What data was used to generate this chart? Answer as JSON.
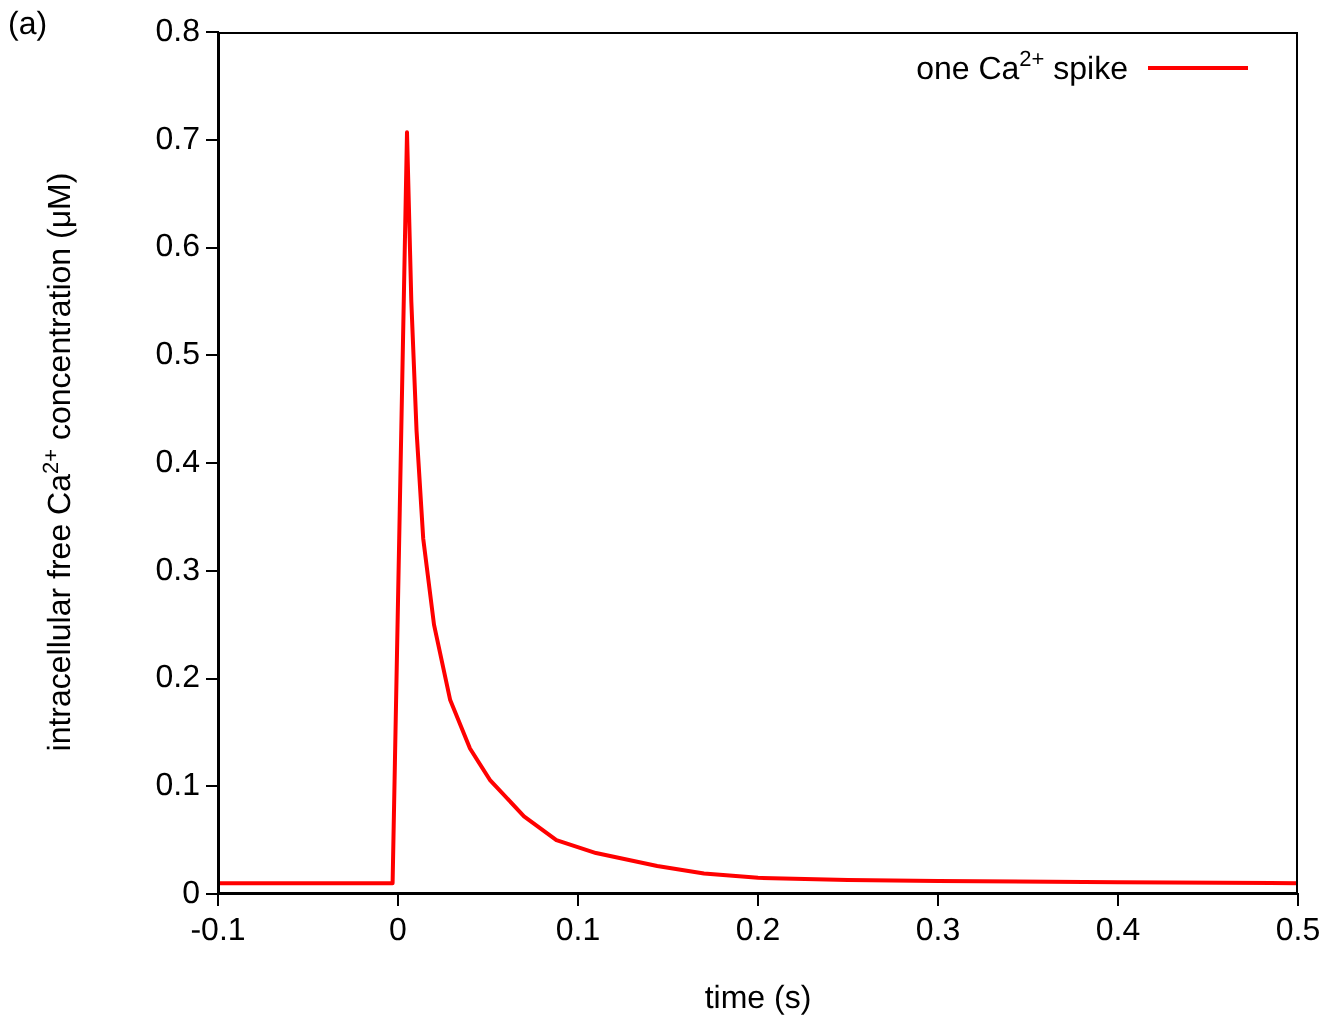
{
  "chart_data": {
    "type": "line",
    "xlabel": "time (s)",
    "ylabel": "intracellular free Ca$^{2+}$ concentration (μM)",
    "annotations": [
      "(a)"
    ],
    "x": [
      -0.1,
      -0.003,
      0.005,
      0.0074,
      0.0103,
      0.014,
      0.02,
      0.029,
      0.04,
      0.051,
      0.07,
      0.088,
      0.11,
      0.144,
      0.17,
      0.2,
      0.25,
      0.3,
      0.4,
      0.5
    ],
    "series": [
      {
        "name": "one Ca$^{2+}$ spike",
        "color": "#ff0000",
        "values": [
          0.01,
          0.01,
          0.707,
          0.55,
          0.43,
          0.33,
          0.25,
          0.18,
          0.135,
          0.106,
          0.072,
          0.05,
          0.038,
          0.026,
          0.019,
          0.015,
          0.013,
          0.012,
          0.011,
          0.01
        ]
      }
    ],
    "xlim": [
      -0.1,
      0.5
    ],
    "xticks": [
      -0.1,
      0,
      0.1,
      0.2,
      0.3,
      0.4,
      0.5
    ],
    "ylim": [
      0,
      0.8
    ],
    "yticks": [
      0,
      0.1,
      0.2,
      0.3,
      0.4,
      0.5,
      0.6,
      0.7,
      0.8
    ],
    "grid": false,
    "legend": "top right",
    "marker": "none",
    "line_style": "solid"
  }
}
